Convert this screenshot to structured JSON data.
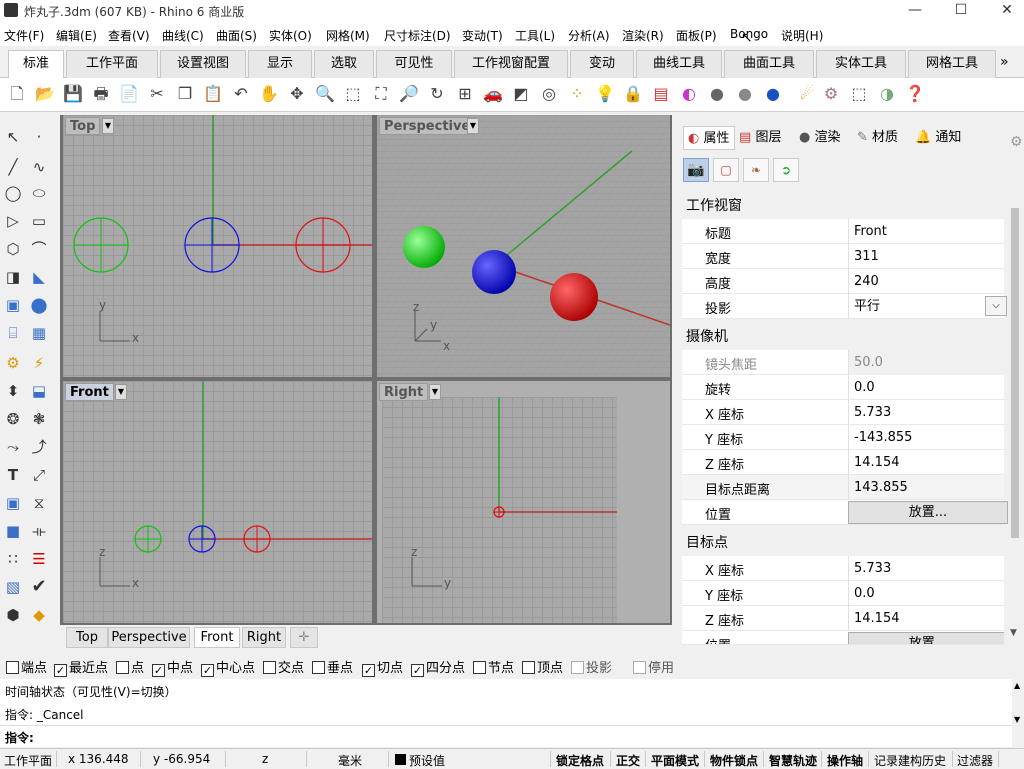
{
  "window": {
    "title": "炸丸子.3dm (607 KB) - Rhino 6 商业版",
    "minimize": "—",
    "maximize": "☐",
    "close": "✕"
  },
  "menu": [
    "文件(F)",
    "编辑(E)",
    "查看(V)",
    "曲线(C)",
    "曲面(S)",
    "实体(O)",
    "网格(M)",
    "尺寸标注(D)",
    "变动(T)",
    "工具(L)",
    "分析(A)",
    "渲染(R)",
    "面板(P)",
    "Bongo",
    "说明(H)"
  ],
  "tabs": [
    "标准",
    "工作平面",
    "设置视图",
    "显示",
    "选取",
    "可见性",
    "工作视窗配置",
    "变动",
    "曲线工具",
    "曲面工具",
    "实体工具",
    "网格工具"
  ],
  "tabs_more": "»",
  "viewports": {
    "top": "Top",
    "perspective": "Perspective",
    "front": "Front",
    "right": "Right"
  },
  "axis_labels": {
    "x": "x",
    "y": "y",
    "z": "z"
  },
  "viewport_tabs": [
    "Top",
    "Perspective",
    "Front",
    "Right"
  ],
  "viewport_tab_add": "✛",
  "panel_tabs": [
    "属性",
    "图层",
    "渲染",
    "材质",
    "通知"
  ],
  "sections": {
    "viewport": "工作视窗",
    "camera": "摄像机",
    "target": "目标点"
  },
  "viewport_props": [
    {
      "key": "标题",
      "value": "Front"
    },
    {
      "key": "宽度",
      "value": "311"
    },
    {
      "key": "高度",
      "value": "240"
    },
    {
      "key": "投影",
      "value": "平行"
    }
  ],
  "camera_props": [
    {
      "key": "镜头焦距",
      "value": "50.0"
    },
    {
      "key": "旋转",
      "value": "0.0"
    },
    {
      "key": "X 座标",
      "value": "5.733"
    },
    {
      "key": "Y 座标",
      "value": "-143.855"
    },
    {
      "key": "Z 座标",
      "value": "14.154"
    },
    {
      "key": "目标点距离",
      "value": "143.855"
    },
    {
      "key": "位置",
      "value": "放置..."
    }
  ],
  "target_props": [
    {
      "key": "X 座标",
      "value": "5.733"
    },
    {
      "key": "Y 座标",
      "value": "0.0"
    },
    {
      "key": "Z 座标",
      "value": "14.154"
    },
    {
      "key": "位置",
      "value": "放置..."
    }
  ],
  "osnap": [
    {
      "label": "端点",
      "checked": false
    },
    {
      "label": "最近点",
      "checked": true
    },
    {
      "label": "点",
      "checked": false
    },
    {
      "label": "中点",
      "checked": true
    },
    {
      "label": "中心点",
      "checked": true
    },
    {
      "label": "交点",
      "checked": false
    },
    {
      "label": "垂点",
      "checked": false
    },
    {
      "label": "切点",
      "checked": true
    },
    {
      "label": "四分点",
      "checked": true
    },
    {
      "label": "节点",
      "checked": false
    },
    {
      "label": "顶点",
      "checked": false
    },
    {
      "label": "投影",
      "checked": false
    },
    {
      "label": "停用",
      "checked": false
    }
  ],
  "command": {
    "history1": "时间轴状态（可见性(V)=切换）",
    "history2": "指令: _Cancel",
    "prompt": "指令:"
  },
  "status": {
    "cplane": "工作平面",
    "x": "x 136.448",
    "y": "y -66.954",
    "z": "z",
    "units": "毫米",
    "layer": "预设值",
    "items": [
      "锁定格点",
      "正交",
      "平面模式",
      "物件锁点",
      "智慧轨迹",
      "操作轴",
      "记录建构历史",
      "过滤器"
    ]
  },
  "colors": {
    "red": "#e01010",
    "green": "#10c010",
    "blue": "#1010e0",
    "axis_red": "#c03030",
    "axis_green": "#30a030"
  }
}
